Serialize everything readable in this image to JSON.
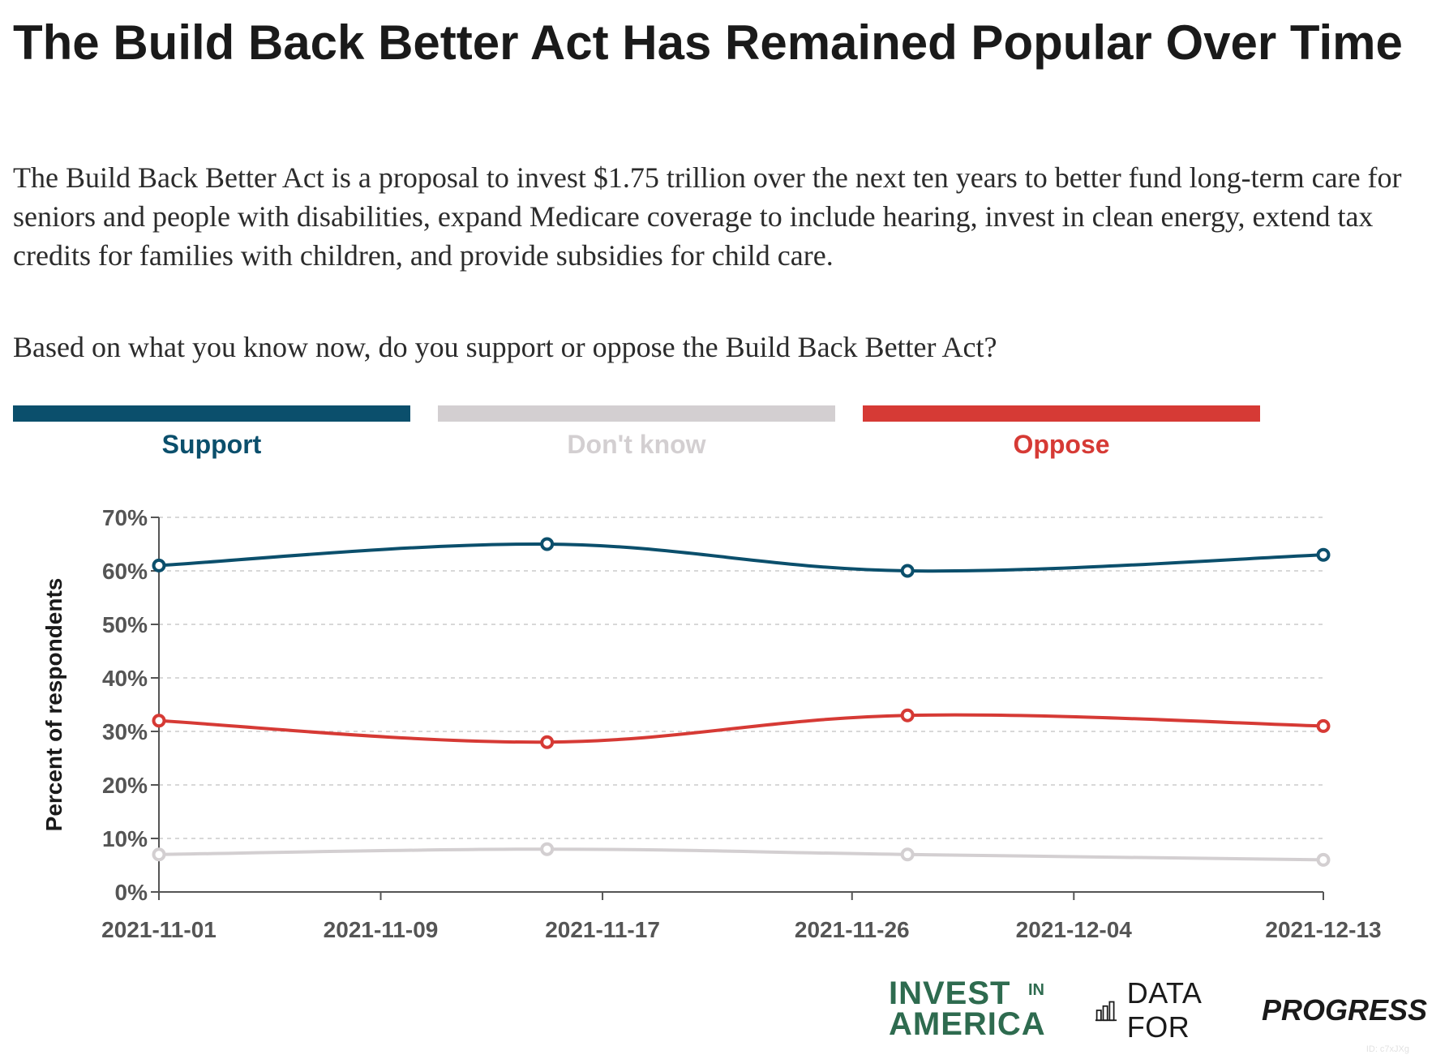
{
  "title": "The Build Back Better Act Has Remained Popular Over Time",
  "subtitle": "The Build Back Better Act is a proposal to invest $1.75 trillion over the next ten years to better fund long-term care for seniors and people with disabilities, expand Medicare coverage to include hearing, invest in clean energy, extend tax credits for families with children, and provide subsidies for child care.",
  "question": "Based on what you know now, do you support or oppose the Build Back Better Act?",
  "colors": {
    "support": "#0b4f6c",
    "dont_know": "#d3cfd1",
    "oppose": "#d63a35",
    "grid": "#cccccc",
    "axis": "#555555",
    "tick_text": "#555555"
  },
  "legend": [
    {
      "key": "support",
      "label": "Support"
    },
    {
      "key": "dont_know",
      "label": "Don't know"
    },
    {
      "key": "oppose",
      "label": "Oppose"
    }
  ],
  "chart_data": {
    "type": "line",
    "ylabel": "Percent of respondents",
    "xlabel": "",
    "ylim": [
      0,
      70
    ],
    "y_ticks": [
      0,
      10,
      20,
      30,
      40,
      50,
      60,
      70
    ],
    "y_tick_labels": [
      "0%",
      "10%",
      "20%",
      "30%",
      "40%",
      "50%",
      "60%",
      "70%"
    ],
    "x_ticks": [
      "2021-11-01",
      "2021-11-09",
      "2021-11-17",
      "2021-11-26",
      "2021-12-04",
      "2021-12-13"
    ],
    "x_range": [
      "2021-11-01",
      "2021-12-13"
    ],
    "grid": "horizontal dashed",
    "legend_position": "top",
    "series": [
      {
        "name": "Support",
        "key": "support",
        "points": [
          {
            "x": "2021-11-01",
            "y": 61
          },
          {
            "x": "2021-11-15",
            "y": 65
          },
          {
            "x": "2021-11-28",
            "y": 60
          },
          {
            "x": "2021-12-13",
            "y": 63
          }
        ]
      },
      {
        "name": "Don't know",
        "key": "dont_know",
        "points": [
          {
            "x": "2021-11-01",
            "y": 7
          },
          {
            "x": "2021-11-15",
            "y": 8
          },
          {
            "x": "2021-11-28",
            "y": 7
          },
          {
            "x": "2021-12-13",
            "y": 6
          }
        ]
      },
      {
        "name": "Oppose",
        "key": "oppose",
        "points": [
          {
            "x": "2021-11-01",
            "y": 32
          },
          {
            "x": "2021-11-15",
            "y": 28
          },
          {
            "x": "2021-11-28",
            "y": 33
          },
          {
            "x": "2021-12-13",
            "y": 31
          }
        ]
      }
    ]
  },
  "logos": {
    "invest_line1": "INVEST",
    "invest_in": "IN",
    "invest_line2": "AMERICA",
    "dfp_part1": "DATA FOR",
    "dfp_part2": "PROGRESS",
    "dfp_icon": "bar-chart-icon"
  },
  "id_note": "ID: c7xJXg"
}
